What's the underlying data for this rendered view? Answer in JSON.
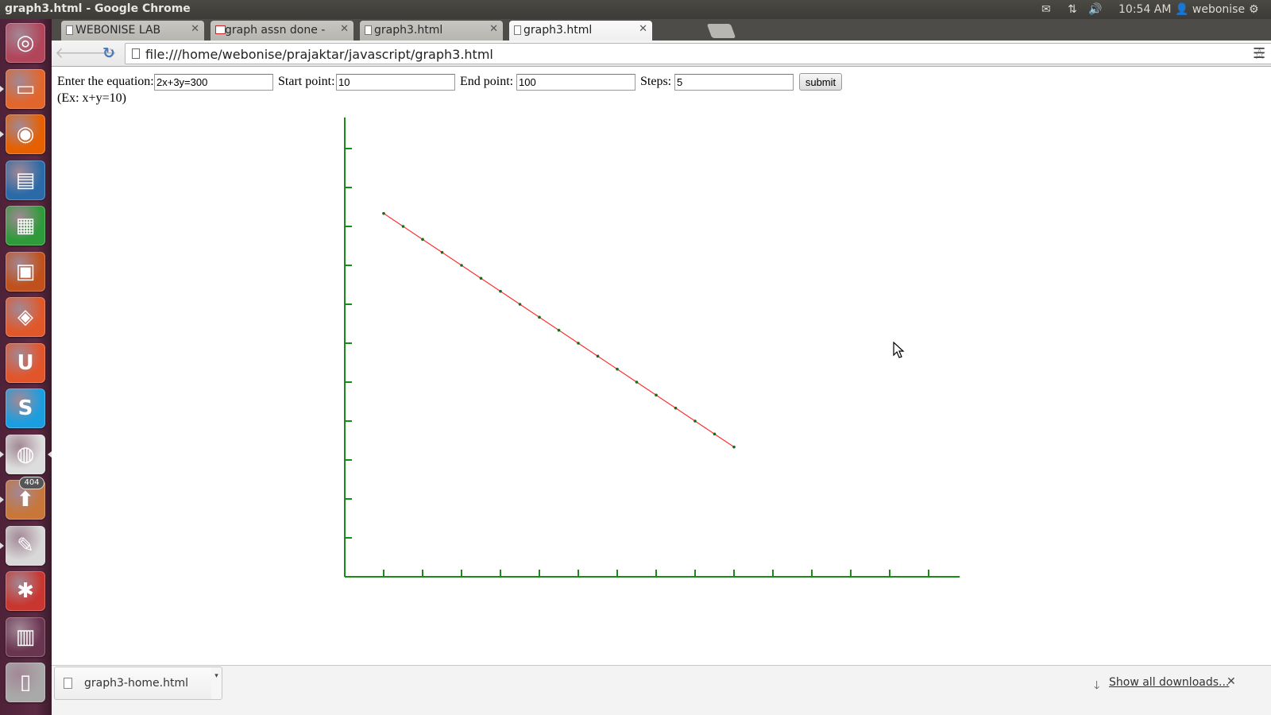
{
  "window": {
    "title": "graph3.html - Google Chrome"
  },
  "panel": {
    "clock": "10:54 AM",
    "user": "webonise",
    "icons": [
      "mail-icon",
      "network-icon",
      "sound-icon",
      "user-icon",
      "gear-icon"
    ]
  },
  "launcher": {
    "items": [
      {
        "name": "ubuntu-dash",
        "color": "#b1465b"
      },
      {
        "name": "files",
        "color": "#e2662b"
      },
      {
        "name": "firefox",
        "color": "#e66000"
      },
      {
        "name": "libreoffice-writer",
        "color": "#2a6aa8"
      },
      {
        "name": "libreoffice-calc",
        "color": "#2e9b3a"
      },
      {
        "name": "libreoffice-impress",
        "color": "#c0511c"
      },
      {
        "name": "software-center",
        "color": "#e0582a"
      },
      {
        "name": "ubuntu-one",
        "color": "#e2542a"
      },
      {
        "name": "skype",
        "color": "#1b9ee0"
      },
      {
        "name": "chrome",
        "color": "#dddddd"
      },
      {
        "name": "update-manager",
        "color": "#c8763a",
        "badge": "404"
      },
      {
        "name": "text-editor",
        "color": "#d8d8d8"
      },
      {
        "name": "system-settings",
        "color": "#c9362f"
      },
      {
        "name": "workspace-switcher",
        "color": "#6a3550"
      },
      {
        "name": "trash",
        "color": "#a9a9a9"
      }
    ]
  },
  "tabs": [
    {
      "label": "WEBONISE LAB",
      "icon": "page-icon"
    },
    {
      "label": "graph assn done - praj",
      "icon": "gmail-icon"
    },
    {
      "label": "graph3.html",
      "icon": "page-icon"
    },
    {
      "label": "graph3.html",
      "icon": "page-icon",
      "active": true
    }
  ],
  "toolbar": {
    "url": "file:///home/webonise/prajaktar/javascript/graph3.html"
  },
  "form": {
    "equation_label": "Enter the equation:",
    "equation_value": "2x+3y=300",
    "start_label": "Start point:",
    "start_value": "10",
    "end_label": "End point:",
    "end_value": "100",
    "steps_label": "Steps:",
    "steps_value": "5",
    "submit_label": "submit",
    "hint": "(Ex: x+y=10)"
  },
  "chart_data": {
    "type": "line",
    "equation": "2x+3y=300",
    "x": [
      10,
      15,
      20,
      25,
      30,
      35,
      40,
      45,
      50,
      55,
      60,
      65,
      70,
      75,
      80,
      85,
      90,
      95,
      100
    ],
    "y": [
      93.33,
      90,
      86.67,
      83.33,
      80,
      76.67,
      73.33,
      70,
      66.67,
      63.33,
      60,
      56.67,
      53.33,
      50,
      46.67,
      43.33,
      40,
      36.67,
      33.33
    ],
    "xlim": [
      0,
      158
    ],
    "ylim": [
      0,
      118
    ],
    "x_tick_step": 10,
    "y_tick_step": 10,
    "line_color": "#ff3030",
    "point_color": "#1a6a1a",
    "axis_color": "#1a8a1a"
  },
  "downloads": {
    "file": "graph3-home.html",
    "show_all": "Show all downloads..."
  }
}
